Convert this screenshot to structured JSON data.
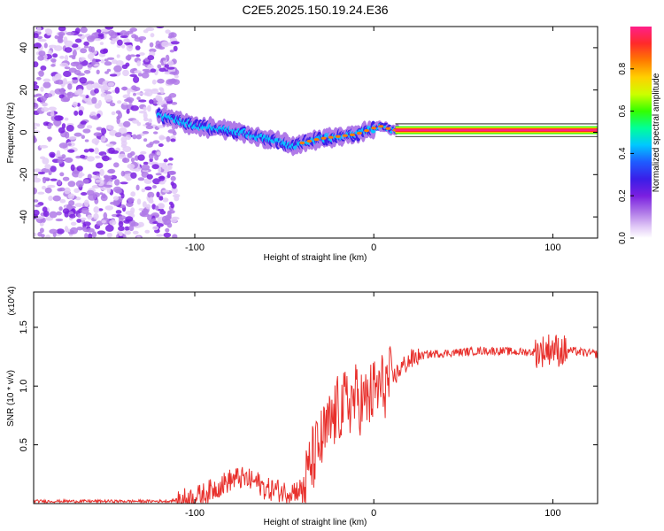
{
  "chart_data": [
    {
      "type": "heatmap",
      "title": "C2E5.2025.150.19.24.E36",
      "xlabel": "Height of straight line (km)",
      "ylabel": "Frequency (Hz)",
      "xlim": [
        -190,
        125
      ],
      "ylim": [
        -50,
        50
      ],
      "x_ticks": [
        -100,
        0,
        100
      ],
      "y_ticks": [
        -40,
        -20,
        0,
        20,
        40
      ],
      "colorbar": {
        "label": "Normalized spectral amplitude",
        "range": [
          0,
          1
        ],
        "ticks": [
          0.0,
          0.2,
          0.4,
          0.6,
          0.8
        ],
        "colormap": [
          "#ffffff",
          "#e3ccf7",
          "#b07ae8",
          "#7a1fe0",
          "#3a1ee8",
          "#1e5cff",
          "#00c8ff",
          "#00ff99",
          "#33ff00",
          "#ccff00",
          "#ffd000",
          "#ff7a00",
          "#ff2a2a",
          "#ff1f8a"
        ]
      },
      "signal_ridge": {
        "x": [
          -120,
          -110,
          -100,
          -90,
          -80,
          -70,
          -60,
          -50,
          -45,
          -40,
          -30,
          -20,
          -10,
          0,
          5,
          10,
          20,
          40,
          60,
          80,
          100,
          125
        ],
        "y": [
          8,
          6,
          3,
          2,
          1,
          -1,
          -3,
          -5,
          -7,
          -5,
          -3,
          -2,
          -1,
          2,
          3,
          1,
          1,
          1,
          1,
          1,
          1,
          1
        ]
      },
      "noise_region_x": [
        -190,
        -110
      ]
    },
    {
      "type": "line",
      "xlabel": "Height of straight line (km)",
      "ylabel": "SNR (10 * v/v)",
      "y_multiplier": "(x10^4)",
      "xlim": [
        -190,
        125
      ],
      "ylim": [
        0,
        1.8
      ],
      "x_ticks": [
        -100,
        0,
        100
      ],
      "y_ticks": [
        0.5,
        1.0,
        1.5
      ],
      "color": "#e8302c",
      "series": [
        {
          "x": [
            -190,
            -150,
            -115,
            -110,
            -100,
            -95,
            -90,
            -85,
            -80,
            -75,
            -70,
            -65,
            -60,
            -55,
            -50,
            -45,
            -40,
            -38,
            -35,
            -30,
            -25,
            -20,
            -15,
            -10,
            -5,
            0,
            5,
            10,
            15,
            20,
            25,
            30,
            40,
            50,
            60,
            70,
            80,
            90,
            95,
            100,
            103,
            110,
            120,
            125
          ],
          "y": [
            0.02,
            0.02,
            0.02,
            0.03,
            0.05,
            0.08,
            0.12,
            0.16,
            0.2,
            0.22,
            0.2,
            0.18,
            0.12,
            0.12,
            0.1,
            0.11,
            0.12,
            0.18,
            0.35,
            0.5,
            0.65,
            0.8,
            0.85,
            0.9,
            0.85,
            0.95,
            1.0,
            1.05,
            1.15,
            1.22,
            1.25,
            1.27,
            1.28,
            1.29,
            1.3,
            1.3,
            1.29,
            1.29,
            1.3,
            1.33,
            1.3,
            1.3,
            1.28,
            1.27
          ]
        }
      ]
    }
  ]
}
